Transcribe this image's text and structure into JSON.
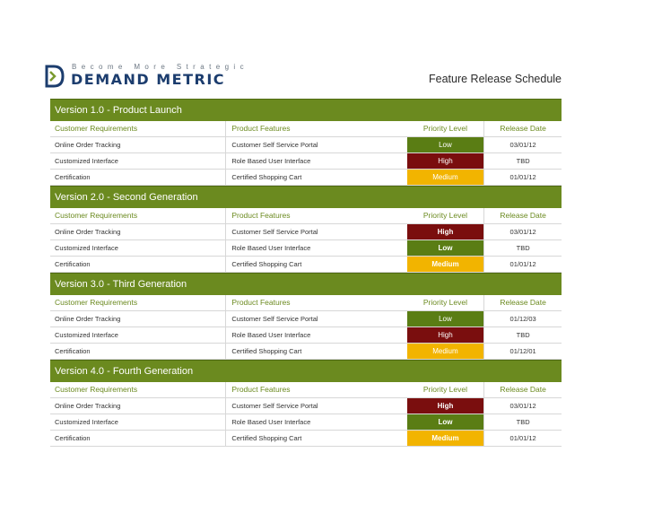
{
  "header": {
    "tagline": "Become More Strategic",
    "brand": "DEMAND METRIC",
    "title": "Feature Release Schedule"
  },
  "columns": [
    "Customer Requirements",
    "Product Features",
    "Priority Level",
    "Release Date"
  ],
  "colors": {
    "version_bar": "#6b8a1f",
    "low": "#5a7d14",
    "high": "#7a0e0e",
    "medium": "#f2b400"
  },
  "sections": [
    {
      "title": "Version 1.0 - Product Launch",
      "rows": [
        {
          "requirement": "Online Order Tracking",
          "feature": "Customer Self Service Portal",
          "priority": "Low",
          "date": "03/01/12"
        },
        {
          "requirement": "Customized Interface",
          "feature": "Role Based User Interface",
          "priority": "High",
          "date": "TBD"
        },
        {
          "requirement": "Certification",
          "feature": "Certified Shopping Cart",
          "priority": "Medium",
          "date": "01/01/12"
        }
      ]
    },
    {
      "title": "Version 2.0 - Second Generation",
      "rows": [
        {
          "requirement": "Online Order Tracking",
          "feature": "Customer Self Service Portal",
          "priority": "High",
          "date": "03/01/12"
        },
        {
          "requirement": "Customized Interface",
          "feature": "Role Based User Interface",
          "priority": "Low",
          "date": "TBD"
        },
        {
          "requirement": "Certification",
          "feature": "Certified Shopping Cart",
          "priority": "Medium",
          "date": "01/01/12"
        }
      ]
    },
    {
      "title": "Version 3.0 - Third Generation",
      "rows": [
        {
          "requirement": "Online Order Tracking",
          "feature": "Customer Self Service Portal",
          "priority": "Low",
          "date": "01/12/03"
        },
        {
          "requirement": "Customized Interface",
          "feature": "Role Based User Interface",
          "priority": "High",
          "date": "TBD"
        },
        {
          "requirement": "Certification",
          "feature": "Certified Shopping Cart",
          "priority": "Medium",
          "date": "01/12/01"
        }
      ]
    },
    {
      "title": "Version 4.0 - Fourth Generation",
      "rows": [
        {
          "requirement": "Online Order Tracking",
          "feature": "Customer Self Service Portal",
          "priority": "High",
          "date": "03/01/12"
        },
        {
          "requirement": "Customized Interface",
          "feature": "Role Based User Interface",
          "priority": "Low",
          "date": "TBD"
        },
        {
          "requirement": "Certification",
          "feature": "Certified Shopping Cart",
          "priority": "Medium",
          "date": "01/01/12"
        }
      ]
    }
  ]
}
